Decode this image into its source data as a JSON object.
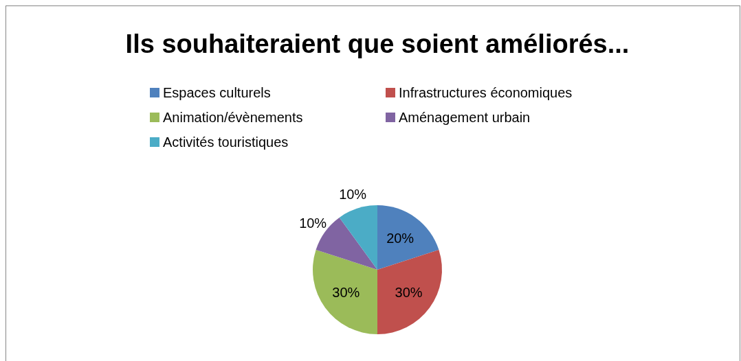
{
  "chart_data": {
    "type": "pie",
    "title": "Ils souhaiteraient que soient améliorés...",
    "categories": [
      "Espaces culturels",
      "Infrastructures économiques",
      "Animation/évènements",
      "Aménagement urbain",
      "Activités touristiques"
    ],
    "values": [
      20,
      30,
      30,
      10,
      10
    ],
    "colors": [
      "#4f81bd",
      "#c0504d",
      "#9bbb59",
      "#8064a2",
      "#4bacc6"
    ],
    "value_labels": [
      "20%",
      "30%",
      "30%",
      "10%",
      "10%"
    ],
    "legend": "top"
  }
}
